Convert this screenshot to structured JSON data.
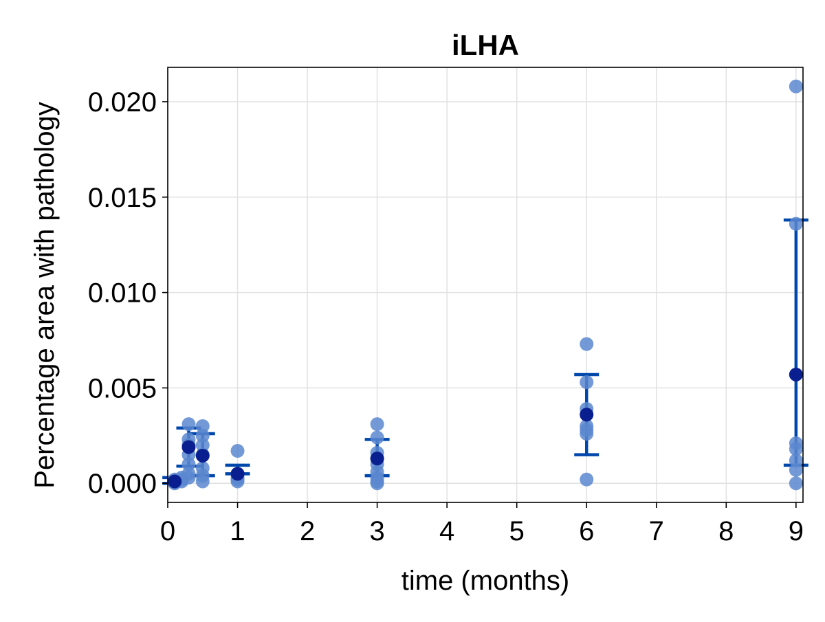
{
  "chart_data": {
    "type": "scatter",
    "title": "iLHA",
    "xlabel": "time (months)",
    "ylabel": "Percentage area with pathology",
    "xlim": [
      0,
      9.1
    ],
    "ylim": [
      -0.001,
      0.0218
    ],
    "xticks": [
      0,
      1,
      2,
      3,
      4,
      5,
      6,
      7,
      8,
      9
    ],
    "xtick_labels": [
      "0",
      "1",
      "2",
      "3",
      "4",
      "5",
      "6",
      "7",
      "8",
      "9"
    ],
    "yticks": [
      0.0,
      0.005,
      0.01,
      0.015,
      0.02
    ],
    "ytick_labels": [
      "0.000",
      "0.005",
      "0.010",
      "0.015",
      "0.020"
    ],
    "grid": true,
    "legend": "none",
    "colors": {
      "points": "#5b87cf",
      "mean": "#0a1f8f",
      "errorbar": "#0047ab"
    },
    "series": [
      {
        "kind": "points",
        "x": [
          0.1,
          0.1,
          0.1,
          0.1,
          0.1,
          0.2,
          0.2,
          0.2,
          0.3,
          0.3,
          0.3,
          0.3,
          0.3,
          0.3,
          0.3,
          0.5,
          0.5,
          0.5,
          0.5,
          0.5,
          0.5,
          0.5,
          1,
          1,
          1,
          1,
          1,
          3,
          3,
          3,
          3,
          3,
          3,
          3,
          3,
          3,
          6,
          6,
          6,
          6,
          6,
          6,
          6,
          9,
          9,
          9,
          9,
          9,
          9,
          9
        ],
        "y": [
          0.0,
          5e-05,
          0.0001,
          0.00015,
          0.0002,
          0.0001,
          0.0002,
          0.0003,
          0.0031,
          0.0023,
          0.002,
          0.0015,
          0.001,
          0.0005,
          0.0003,
          0.003,
          0.0025,
          0.002,
          0.0015,
          0.0008,
          0.0004,
          0.0001,
          0.0017,
          0.0005,
          0.0003,
          0.0002,
          0.0001,
          0.0031,
          0.0024,
          0.0016,
          0.0013,
          0.001,
          0.0006,
          0.0003,
          0.0001,
          0.0,
          0.0073,
          0.0053,
          0.0039,
          0.003,
          0.0028,
          0.0026,
          0.0002,
          0.0208,
          0.0136,
          0.0021,
          0.0018,
          0.0012,
          0.0007,
          0.0
        ]
      },
      {
        "kind": "mean",
        "x": [
          0.1,
          0.3,
          0.5,
          1,
          3,
          6,
          9
        ],
        "y": [
          0.0001,
          0.0019,
          0.00145,
          0.0005,
          0.0013,
          0.0036,
          0.0057
        ]
      },
      {
        "kind": "errorbar",
        "x": [
          0.1,
          0.3,
          0.5,
          1,
          3,
          6,
          9
        ],
        "low": [
          0.0,
          0.0009,
          0.0004,
          0.0005,
          0.0004,
          0.0015,
          0.00095
        ],
        "high": [
          0.0003,
          0.0029,
          0.0026,
          0.00095,
          0.0023,
          0.0057,
          0.0138
        ]
      }
    ]
  }
}
